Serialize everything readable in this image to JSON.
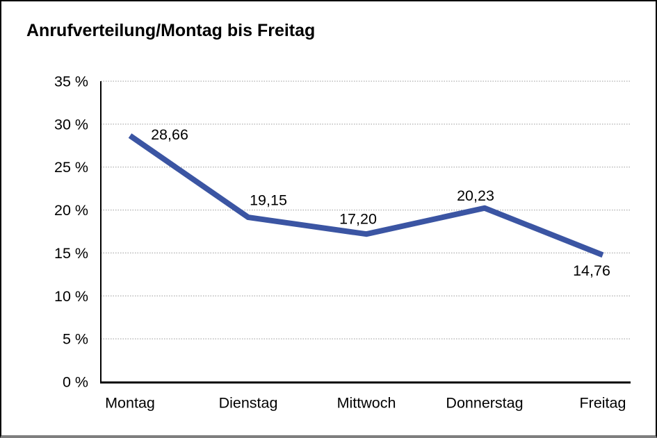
{
  "title": "Anrufverteilung/Montag bis Freitag",
  "colors": {
    "line": "#3B55A3",
    "grid": "#999999",
    "axis": "#000000",
    "text": "#000000",
    "frame_border": "#000000",
    "frame_shadow": "#7F7F7F",
    "background": "#FFFFFF"
  },
  "chart_data": {
    "type": "line",
    "title": "Anrufverteilung/Montag bis Freitag",
    "categories": [
      "Montag",
      "Dienstag",
      "Mittwoch",
      "Donnerstag",
      "Freitag"
    ],
    "values": [
      28.66,
      19.15,
      17.2,
      20.23,
      14.76
    ],
    "value_labels": [
      "28,66",
      "19,15",
      "17,20",
      "20,23",
      "14,76"
    ],
    "series_name": "Anrufverteilung",
    "xlabel": "",
    "ylabel": "",
    "ylim": [
      0,
      35
    ],
    "y_ticks": [
      0,
      5,
      10,
      15,
      20,
      25,
      30,
      35
    ],
    "y_tick_labels": [
      "0 %",
      "5 %",
      "10 %",
      "15 %",
      "20 %",
      "25 %",
      "30 %",
      "35 %"
    ],
    "grid": "horizontal-dotted",
    "legend": "none",
    "markers": "none"
  }
}
